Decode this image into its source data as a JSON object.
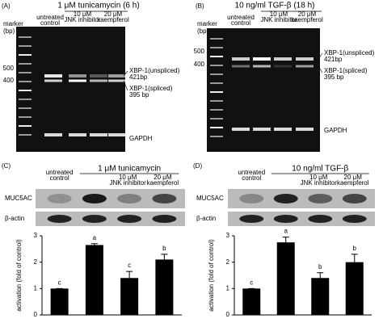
{
  "panels": [
    {
      "label": "(A)",
      "treatment": "1 μM tunicamycin (6 h)",
      "marker_label": [
        "marker",
        "(bp)"
      ],
      "columns": [
        [
          "untreated",
          "control"
        ],
        [
          "10 μM",
          "JNK inhibitor"
        ],
        [
          "20 μM",
          "kaempferol"
        ]
      ],
      "marker_sizes": [
        500,
        400
      ],
      "bands": [
        [
          "XBP-1(unspliced)",
          "421bp"
        ],
        [
          "XBP-1(spliced)",
          "395 bp"
        ],
        [
          "GAPDH"
        ]
      ]
    },
    {
      "label": "(B)",
      "treatment": "10 ng/ml TGF-β (18 h)",
      "marker_label": [
        "marker",
        "(bp)"
      ],
      "columns": [
        [
          "untreated",
          "control"
        ],
        [
          "10 μM",
          "JNK inhibitor"
        ],
        [
          "20 μM",
          "kaempferol"
        ]
      ],
      "marker_sizes": [
        500,
        400
      ],
      "bands": [
        [
          "XBP-1(unspliced)",
          "421bp"
        ],
        [
          "XBP-1(spliced)",
          "395 bp"
        ],
        [
          "GAPDH"
        ]
      ]
    }
  ],
  "blots": [
    {
      "label": "(C)",
      "control": [
        "untreated",
        "control"
      ],
      "treatment": "1 μM tunicamycin",
      "columns": [
        [
          "10 μM",
          "JNK inhibitor"
        ],
        [
          "20 μM",
          "kaempferol"
        ]
      ],
      "rows": [
        "MUC5AC",
        "β-actin"
      ]
    },
    {
      "label": "(D)",
      "control": [
        "untreated",
        "control"
      ],
      "treatment": "10 ng/ml TGF-β",
      "columns": [
        [
          "10 μM",
          "JNK inhibitor"
        ],
        [
          "20 μM",
          "kaempferol"
        ]
      ],
      "rows": [
        "MUC5AC",
        "β-actin"
      ]
    }
  ],
  "chart_data": [
    {
      "type": "bar",
      "ylabel": "activation (fold of control)",
      "categories": [
        null,
        null,
        null,
        null
      ],
      "values": [
        1,
        2.65,
        1.4,
        2.1
      ],
      "errors": [
        0,
        0.05,
        0.25,
        0.2
      ],
      "letters": [
        "c",
        "a",
        "c",
        "b"
      ],
      "color": "#000000",
      "ylim": [
        0,
        3
      ],
      "yticks": [
        0,
        1,
        2,
        3
      ]
    },
    {
      "type": "bar",
      "ylabel": "activation (fold of control)",
      "categories": [
        null,
        null,
        null,
        null
      ],
      "values": [
        1,
        2.75,
        1.4,
        2.0
      ],
      "errors": [
        0,
        0.2,
        0.2,
        0.3
      ],
      "letters": [
        "c",
        "a",
        "b",
        "b"
      ],
      "color": "#000000",
      "ylim": [
        0,
        3
      ],
      "yticks": [
        0,
        1,
        2,
        3
      ]
    }
  ]
}
